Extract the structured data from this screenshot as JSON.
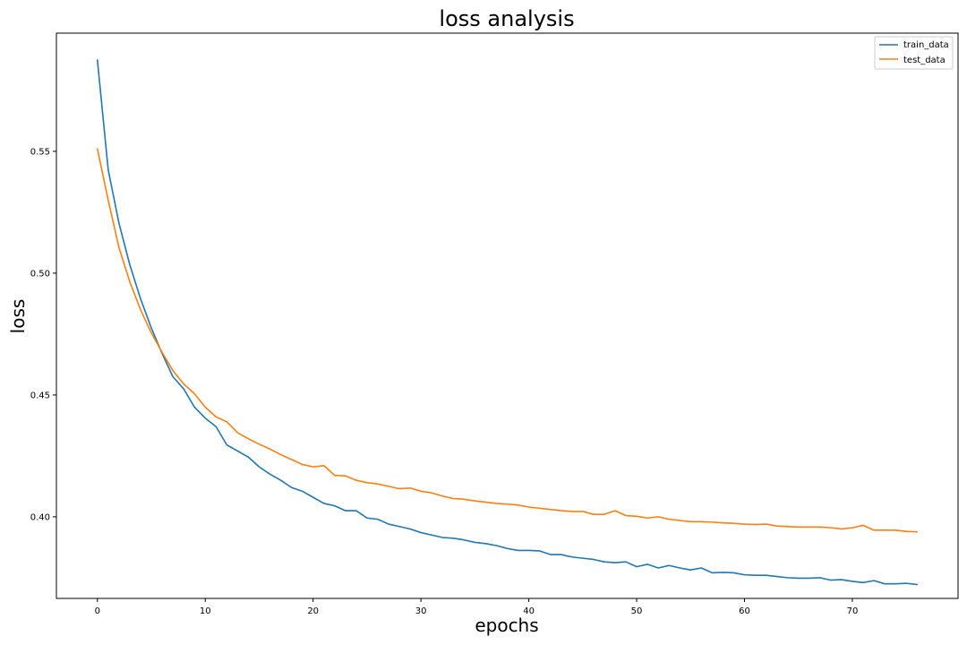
{
  "chart_data": {
    "type": "line",
    "title": "loss analysis",
    "xlabel": "epochs",
    "ylabel": "loss",
    "xlim": [
      -3.8,
      79.8
    ],
    "ylim": [
      0.3665,
      0.5985
    ],
    "xticks": [
      0,
      10,
      20,
      30,
      40,
      50,
      60,
      70
    ],
    "yticks": [
      0.4,
      0.45,
      0.5,
      0.55
    ],
    "ytick_labels": [
      "0.40",
      "0.45",
      "0.50",
      "0.55"
    ],
    "grid": false,
    "legend_position": "top-right",
    "series": [
      {
        "name": "train_data",
        "color": "#1f77b4",
        "values": [
          0.5875,
          0.5425,
          0.5205,
          0.5035,
          0.4895,
          0.4775,
          0.467,
          0.4575,
          0.4525,
          0.445,
          0.4405,
          0.437,
          0.4295,
          0.427,
          0.4245,
          0.4205,
          0.4175,
          0.415,
          0.412,
          0.4105,
          0.408,
          0.4055,
          0.4045,
          0.4025,
          0.4025,
          0.3995,
          0.399,
          0.397,
          0.396,
          0.395,
          0.3935,
          0.3925,
          0.3915,
          0.3912,
          0.3905,
          0.3895,
          0.389,
          0.3882,
          0.387,
          0.3862,
          0.3862,
          0.386,
          0.3845,
          0.3845,
          0.3835,
          0.383,
          0.3825,
          0.3815,
          0.3812,
          0.3815,
          0.3795,
          0.3805,
          0.379,
          0.38,
          0.379,
          0.3782,
          0.379,
          0.377,
          0.3772,
          0.377,
          0.3762,
          0.376,
          0.376,
          0.3755,
          0.375,
          0.3748,
          0.3748,
          0.375,
          0.374,
          0.3742,
          0.3735,
          0.373,
          0.3738,
          0.3725,
          0.3725,
          0.3727,
          0.3722
        ]
      },
      {
        "name": "test_data",
        "color": "#ff7f0e",
        "values": [
          0.551,
          0.53,
          0.5105,
          0.4965,
          0.485,
          0.4755,
          0.4675,
          0.46,
          0.4545,
          0.4505,
          0.445,
          0.441,
          0.439,
          0.4345,
          0.432,
          0.4298,
          0.4278,
          0.4255,
          0.4235,
          0.4215,
          0.4205,
          0.421,
          0.417,
          0.4168,
          0.415,
          0.414,
          0.4135,
          0.4125,
          0.4115,
          0.4118,
          0.4105,
          0.4098,
          0.4085,
          0.4075,
          0.4072,
          0.4065,
          0.406,
          0.4055,
          0.4052,
          0.4048,
          0.404,
          0.4035,
          0.403,
          0.4025,
          0.4022,
          0.4022,
          0.401,
          0.401,
          0.4025,
          0.4005,
          0.4002,
          0.3995,
          0.4,
          0.399,
          0.3985,
          0.398,
          0.398,
          0.3978,
          0.3975,
          0.3973,
          0.397,
          0.3968,
          0.397,
          0.3962,
          0.396,
          0.3958,
          0.3958,
          0.3958,
          0.3955,
          0.395,
          0.3955,
          0.3965,
          0.3945,
          0.3945,
          0.3945,
          0.394,
          0.3938
        ]
      }
    ]
  }
}
